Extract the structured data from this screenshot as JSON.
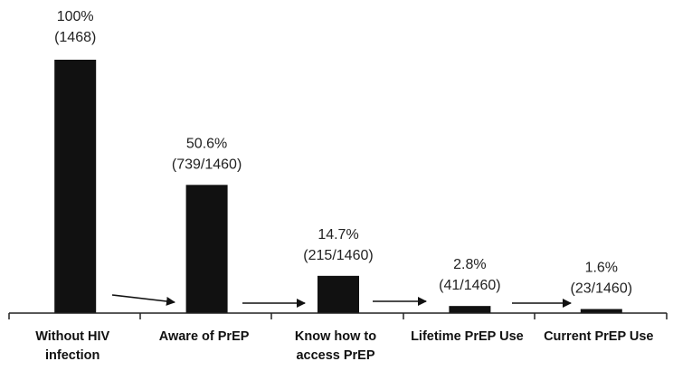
{
  "chart_data": {
    "type": "bar",
    "title": "",
    "xlabel": "",
    "ylabel": "",
    "ylim": [
      0,
      100
    ],
    "grid": false,
    "legend": "none",
    "bar_color": "#111111",
    "categories": [
      [
        "Without HIV",
        "infection"
      ],
      [
        "Aware of PrEP"
      ],
      [
        "Know how to",
        "access PrEP"
      ],
      [
        "Lifetime PrEP Use"
      ],
      [
        "Current PrEP Use"
      ]
    ],
    "values": [
      100,
      50.6,
      14.7,
      2.8,
      1.6
    ],
    "labels": [
      {
        "percent": "100%",
        "count": "(1468)"
      },
      {
        "percent": "50.6%",
        "count": "(739/1460)"
      },
      {
        "percent": "14.7%",
        "count": "(215/1460)"
      },
      {
        "percent": "2.8%",
        "count": "(41/1460)"
      },
      {
        "percent": "1.6%",
        "count": "(23/1460)"
      }
    ],
    "arrows_between_bars": true
  }
}
